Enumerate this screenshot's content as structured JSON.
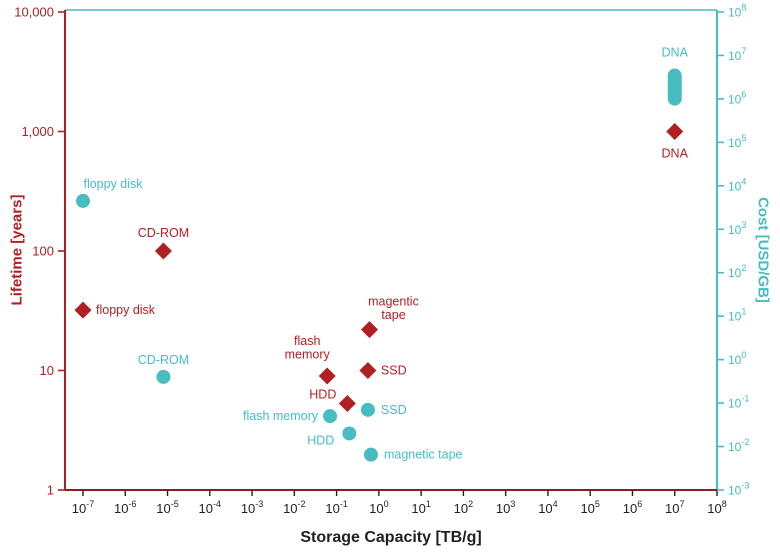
{
  "colors": {
    "lifetime_red": "#b01f24",
    "cost_teal": "#47bdc2",
    "bottom_spine": "#8e1b20",
    "x_text": "#231f20",
    "background": "#ffffff"
  },
  "chart_data": {
    "type": "scatter",
    "title": "",
    "xlabel": "Storage Capacity [TB/g]",
    "x_scale": "log",
    "x_range_exponents": [
      -7,
      8
    ],
    "x_tick_exponents": [
      -7,
      -6,
      -5,
      -4,
      -3,
      -2,
      -1,
      0,
      1,
      2,
      3,
      4,
      5,
      6,
      7,
      8
    ],
    "grid": false,
    "left_axis": {
      "label": "Lifetime [years]",
      "color": "#b01f24",
      "scale": "log",
      "range": [
        1,
        10000
      ],
      "tick_labels_top_to_bottom": [
        "10,000",
        "1,000",
        "100",
        "10",
        "1"
      ]
    },
    "right_axis": {
      "label": "Cost [USD/GB]",
      "color": "#47bdc2",
      "scale": "log",
      "tick_exponents": [
        8,
        7,
        6,
        5,
        4,
        3,
        2,
        1,
        0,
        -1,
        -2,
        -3
      ]
    },
    "series": [
      {
        "name": "Lifetime [years]",
        "axis": "left",
        "marker": "diamond",
        "color": "#b01f24",
        "points": [
          {
            "name": "floppy disk",
            "capacity": 1e-07,
            "value": 32,
            "label_lines": [
              "floppy disk"
            ],
            "anchor": "start",
            "dx": 13,
            "dy": 4
          },
          {
            "name": "CD-ROM",
            "capacity": 8e-06,
            "value": 100,
            "label_lines": [
              "CD-ROM"
            ],
            "anchor": "middle",
            "dx": 0,
            "dy": -14
          },
          {
            "name": "flash memory",
            "capacity": 0.06,
            "value": 9,
            "label_lines": [
              "flash",
              "memory"
            ],
            "anchor": "middle",
            "dx": -20,
            "dy": -31
          },
          {
            "name": "HDD",
            "capacity": 0.18,
            "value": 5.3,
            "label_lines": [
              "HDD"
            ],
            "anchor": "end",
            "dx": -11,
            "dy": -5
          },
          {
            "name": "SSD",
            "capacity": 0.55,
            "value": 10,
            "label_lines": [
              "SSD"
            ],
            "anchor": "start",
            "dx": 13,
            "dy": 4
          },
          {
            "name": "magentic tape",
            "capacity": 0.6,
            "value": 22,
            "label_lines": [
              "magentic",
              "tape"
            ],
            "anchor": "middle",
            "dx": 24,
            "dy": -24
          },
          {
            "name": "DNA",
            "capacity": 10000000.0,
            "value": 1000,
            "label_lines": [
              "DNA"
            ],
            "anchor": "middle",
            "dx": 0,
            "dy": 26
          }
        ]
      },
      {
        "name": "Cost [USD/GB]",
        "axis": "right",
        "marker": "circle",
        "color": "#47bdc2",
        "points": [
          {
            "name": "floppy disk",
            "capacity": 1e-07,
            "value": 4500,
            "label_lines": [
              "floppy disk"
            ],
            "anchor": "middle",
            "dx": 30,
            "dy": -13
          },
          {
            "name": "CD-ROM",
            "capacity": 8e-06,
            "value": 0.4,
            "label_lines": [
              "CD-ROM"
            ],
            "anchor": "middle",
            "dx": 0,
            "dy": -13
          },
          {
            "name": "flash memory",
            "capacity": 0.07,
            "value": 0.05,
            "label_lines": [
              "flash memory"
            ],
            "anchor": "end",
            "dx": -12,
            "dy": 4
          },
          {
            "name": "HDD",
            "capacity": 0.2,
            "value": 0.02,
            "label_lines": [
              "HDD"
            ],
            "anchor": "end",
            "dx": -15,
            "dy": 11
          },
          {
            "name": "SSD",
            "capacity": 0.55,
            "value": 0.07,
            "label_lines": [
              "SSD"
            ],
            "anchor": "start",
            "dx": 13,
            "dy": 4
          },
          {
            "name": "magnetic tape",
            "capacity": 0.65,
            "value": 0.0065,
            "label_lines": [
              "magnetic tape"
            ],
            "anchor": "start",
            "dx": 13,
            "dy": 4
          },
          {
            "name": "DNA",
            "capacity": 10000000.0,
            "value_range": [
              700000.0,
              5000000.0
            ],
            "label_lines": [
              "DNA"
            ],
            "anchor": "middle",
            "dx": 0,
            "dy": -12
          }
        ]
      }
    ]
  }
}
